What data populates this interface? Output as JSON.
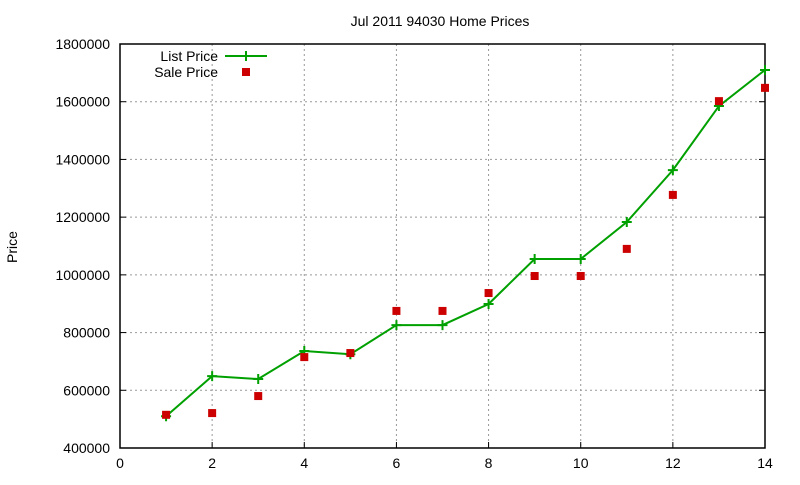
{
  "chart_data": {
    "type": "line",
    "title": "Jul 2011 94030 Home Prices",
    "xlabel": "",
    "ylabel": "Price",
    "xlim": [
      0,
      14
    ],
    "ylim": [
      400000,
      1800000
    ],
    "x_ticks": [
      "0",
      "2",
      "4",
      "6",
      "8",
      "10",
      "12",
      "14"
    ],
    "y_ticks": [
      "400000",
      "600000",
      "800000",
      "1000000",
      "1200000",
      "1400000",
      "1600000",
      "1800000"
    ],
    "grid": true,
    "legend_position": "top-left",
    "x": [
      1,
      2,
      3,
      4,
      5,
      6,
      7,
      8,
      9,
      10,
      11,
      12,
      13,
      14
    ],
    "series": [
      {
        "name": "List Price",
        "style": "line+plus",
        "color": "#00a000",
        "values": [
          510000,
          649000,
          639000,
          736000,
          725000,
          826000,
          826000,
          899000,
          1055000,
          1055000,
          1183000,
          1363000,
          1585000,
          1710000
        ]
      },
      {
        "name": "Sale Price",
        "style": "square",
        "color": "#cc0000",
        "values": [
          515000,
          521000,
          580000,
          715000,
          729000,
          875000,
          875000,
          937000,
          996000,
          996000,
          1090000,
          1277000,
          1602000,
          1648000
        ]
      }
    ]
  }
}
